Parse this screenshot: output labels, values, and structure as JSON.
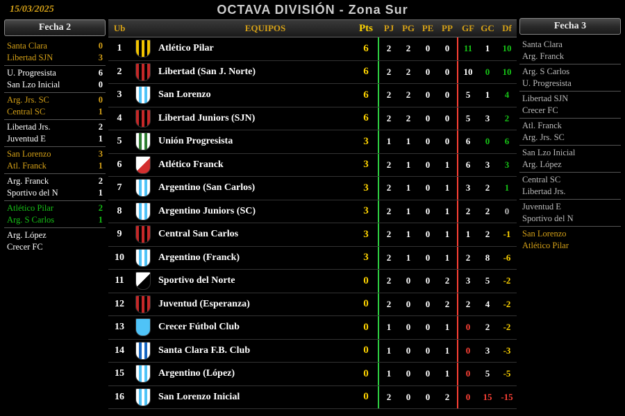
{
  "date": "15/03/2025",
  "title": "OCTAVA DIVISIÓN - Zona Sur",
  "colors": {
    "gold": "#d4a017",
    "yellow": "#ffd400",
    "white": "#ffffff",
    "green": "#16c216",
    "gray": "#bbbbbb",
    "darkgreen": "#0a8a0a",
    "red_left": "#2ecc40",
    "red_right": "#ff4136"
  },
  "left": {
    "title": "Fecha 2",
    "matches": [
      {
        "a": "Santa Clara",
        "sa": "0",
        "ca": "#d4a017",
        "b": "Libertad SJN",
        "sb": "3",
        "cb": "#d4a017"
      },
      {
        "a": "U. Progresista",
        "sa": "6",
        "ca": "#ffffff",
        "b": "San Lzo Inicial",
        "sb": "0",
        "cb": "#ffffff"
      },
      {
        "a": "Arg. Jrs. SC",
        "sa": "0",
        "ca": "#d4a017",
        "b": "Central SC",
        "sb": "1",
        "cb": "#d4a017"
      },
      {
        "a": "Libertad Jrs.",
        "sa": "2",
        "ca": "#ffffff",
        "b": "Juventud E",
        "sb": "1",
        "cb": "#ffffff"
      },
      {
        "a": "San Lorenzo",
        "sa": "3",
        "ca": "#d4a017",
        "b": "Atl. Franck",
        "sb": "1",
        "cb": "#d4a017"
      },
      {
        "a": "Arg. Franck",
        "sa": "2",
        "ca": "#ffffff",
        "b": "Sportivo del N",
        "sb": "1",
        "cb": "#ffffff"
      },
      {
        "a": "Atlético Pilar",
        "sa": "2",
        "ca": "#16c216",
        "b": "Arg. S Carlos",
        "sb": "1",
        "cb": "#16c216"
      },
      {
        "a": "Arg. López",
        "sa": "",
        "ca": "#ffffff",
        "b": "Crecer FC",
        "sb": "",
        "cb": "#ffffff"
      }
    ]
  },
  "right": {
    "title": "Fecha 3",
    "matches": [
      {
        "a": "Santa Clara",
        "b": "Arg. Franck"
      },
      {
        "a": "Arg. S Carlos",
        "b": "U. Progresista"
      },
      {
        "a": "Libertad SJN",
        "b": "Crecer FC"
      },
      {
        "a": "Atl. Franck",
        "b": "Arg. Jrs. SC"
      },
      {
        "a": "San Lzo Inicial",
        "b": "Arg. López"
      },
      {
        "a": "Central SC",
        "b": "Libertad Jrs."
      },
      {
        "a": "Juventud E",
        "b": "Sportivo del N"
      },
      {
        "a": "San Lorenzo",
        "b": "Atlético Pilar",
        "hl": true
      }
    ]
  },
  "headers": {
    "ub": "Ub",
    "eq": "EQUIPOS",
    "pts": "Pts",
    "pj": "PJ",
    "pg": "PG",
    "pe": "PE",
    "pp": "PP",
    "gf": "GF",
    "gc": "GC",
    "df": "Df"
  },
  "table": [
    {
      "ub": 1,
      "team": "Atlético Pilar",
      "pts": 6,
      "pj": 2,
      "pg": 2,
      "pe": 0,
      "pp": 0,
      "gf": 11,
      "gfc": "#16c216",
      "gc": 1,
      "df": "10",
      "dfc": "#16c216",
      "b1": "#f2c400",
      "b2": "#000"
    },
    {
      "ub": 2,
      "team": "Libertad (San J. Norte)",
      "pts": 6,
      "pj": 2,
      "pg": 2,
      "pe": 0,
      "pp": 0,
      "gf": 10,
      "gc": 0,
      "gcc": "#16c216",
      "df": "10",
      "dfc": "#16c216",
      "b1": "#c62828",
      "b2": "#000"
    },
    {
      "ub": 3,
      "team": "San Lorenzo",
      "pts": 6,
      "pj": 2,
      "pg": 2,
      "pe": 0,
      "pp": 0,
      "gf": 5,
      "gc": 1,
      "df": "4",
      "dfc": "#16c216",
      "b1": "#fff",
      "b2": "#4fc3f7"
    },
    {
      "ub": 4,
      "team": "Libertad Juniors (SJN)",
      "pts": 6,
      "pj": 2,
      "pg": 2,
      "pe": 0,
      "pp": 0,
      "gf": 5,
      "gc": 3,
      "df": "2",
      "dfc": "#16c216",
      "b1": "#c62828",
      "b2": "#000"
    },
    {
      "ub": 5,
      "team": "Unión Progresista",
      "pts": 3,
      "pj": 1,
      "pg": 1,
      "pe": 0,
      "pp": 0,
      "gf": 6,
      "gc": 0,
      "gcc": "#16c216",
      "df": "6",
      "dfc": "#16c216",
      "b1": "#fff",
      "b2": "#2e7d32"
    },
    {
      "ub": 6,
      "team": "Atlético Franck",
      "pts": 3,
      "pj": 2,
      "pg": 1,
      "pe": 0,
      "pp": 1,
      "gf": 6,
      "gc": 3,
      "df": "3",
      "dfc": "#16c216",
      "b1": "#fff",
      "b2": "#d32f2f",
      "diag": true
    },
    {
      "ub": 7,
      "team": "Argentino (San Carlos)",
      "pts": 3,
      "pj": 2,
      "pg": 1,
      "pe": 0,
      "pp": 1,
      "gf": 3,
      "gc": 2,
      "df": "1",
      "dfc": "#16c216",
      "b1": "#fff",
      "b2": "#4fc3f7"
    },
    {
      "ub": 8,
      "team": "Argentino Juniors (SC)",
      "pts": 3,
      "pj": 2,
      "pg": 1,
      "pe": 0,
      "pp": 1,
      "gf": 2,
      "gc": 2,
      "df": "0",
      "dfc": "#bbbbbb",
      "b1": "#fff",
      "b2": "#4fc3f7"
    },
    {
      "ub": 9,
      "team": "Central San Carlos",
      "pts": 3,
      "pj": 2,
      "pg": 1,
      "pe": 0,
      "pp": 1,
      "gf": 1,
      "gc": 2,
      "df": "-1",
      "dfc": "#ffd400",
      "b1": "#c62828",
      "b2": "#000"
    },
    {
      "ub": 10,
      "team": "Argentino (Franck)",
      "pts": 3,
      "pj": 2,
      "pg": 1,
      "pe": 0,
      "pp": 1,
      "gf": 2,
      "gc": 8,
      "df": "-6",
      "dfc": "#ffd400",
      "b1": "#fff",
      "b2": "#4fc3f7"
    },
    {
      "ub": 11,
      "team": "Sportivo del Norte",
      "pts": 0,
      "pj": 2,
      "pg": 0,
      "pe": 0,
      "pp": 2,
      "gf": 3,
      "gc": 5,
      "df": "-2",
      "dfc": "#ffd400",
      "b1": "#fff",
      "b2": "#000",
      "diag": true
    },
    {
      "ub": 12,
      "team": "Juventud (Esperanza)",
      "pts": 0,
      "pj": 2,
      "pg": 0,
      "pe": 0,
      "pp": 2,
      "gf": 2,
      "gc": 4,
      "df": "-2",
      "dfc": "#ffd400",
      "b1": "#c62828",
      "b2": "#000"
    },
    {
      "ub": 13,
      "team": "Crecer Fútbol Club",
      "pts": 0,
      "pj": 1,
      "pg": 0,
      "pe": 0,
      "pp": 1,
      "gf": 0,
      "gfc": "#ff4136",
      "gc": 2,
      "df": "-2",
      "dfc": "#ffd400",
      "b1": "#4fc3f7",
      "b2": "#4fc3f7"
    },
    {
      "ub": 14,
      "team": "Santa Clara F.B. Club",
      "pts": 0,
      "pj": 1,
      "pg": 0,
      "pe": 0,
      "pp": 1,
      "gf": 0,
      "gfc": "#ff4136",
      "gc": 3,
      "df": "-3",
      "dfc": "#ffd400",
      "b1": "#fff",
      "b2": "#1565c0"
    },
    {
      "ub": 15,
      "team": "Argentino (López)",
      "pts": 0,
      "pj": 1,
      "pg": 0,
      "pe": 0,
      "pp": 1,
      "gf": 0,
      "gfc": "#ff4136",
      "gc": 5,
      "df": "-5",
      "dfc": "#ffd400",
      "b1": "#fff",
      "b2": "#4fc3f7"
    },
    {
      "ub": 16,
      "team": "San Lorenzo Inicial",
      "pts": 0,
      "pj": 2,
      "pg": 0,
      "pe": 0,
      "pp": 2,
      "gf": 0,
      "gfc": "#ff4136",
      "gc": 15,
      "gcc": "#ff4136",
      "df": "-15",
      "dfc": "#ff4136",
      "b1": "#fff",
      "b2": "#4fc3f7"
    }
  ]
}
